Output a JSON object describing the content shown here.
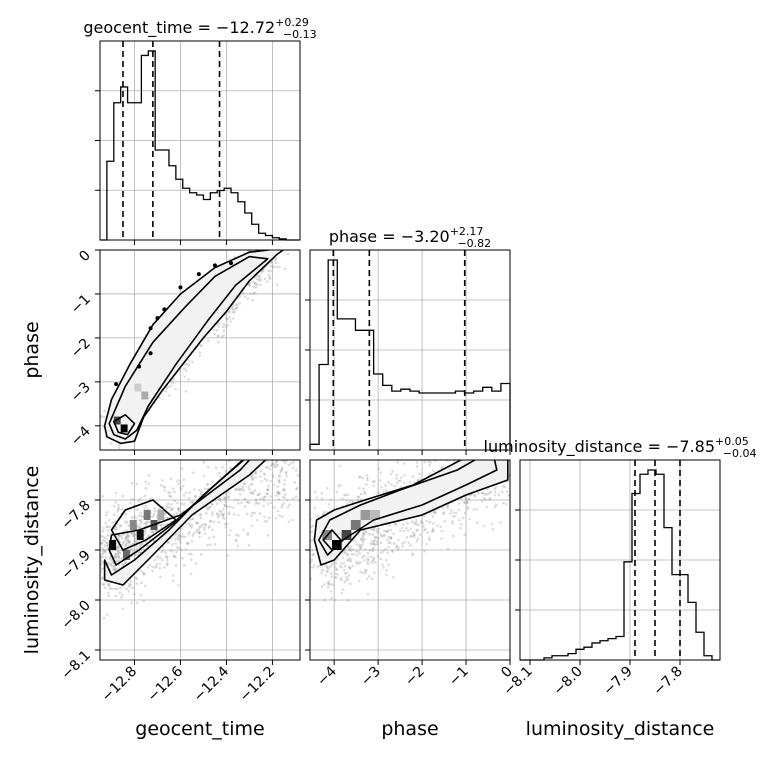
{
  "chart_data": {
    "type": "corner",
    "parameters": [
      "geocent_time",
      "phase",
      "luminosity_distance"
    ],
    "grid": true,
    "panels": {
      "geocent_time_hist": {
        "title": {
          "text": "geocent_time = −12.72",
          "sup": "+0.29",
          "sub": "−0.13"
        },
        "xlim": [
          -12.95,
          -12.08
        ],
        "quantiles": [
          -12.85,
          -12.72,
          -12.43
        ],
        "bin_edges": [
          -12.95,
          -12.92,
          -12.89,
          -12.86,
          -12.83,
          -12.8,
          -12.77,
          -12.74,
          -12.71,
          -12.68,
          -12.65,
          -12.62,
          -12.59,
          -12.56,
          -12.53,
          -12.5,
          -12.47,
          -12.44,
          -12.41,
          -12.38,
          -12.35,
          -12.32,
          -12.29,
          -12.26,
          -12.23,
          -12.2,
          -12.17,
          -12.14,
          -12.11,
          -12.08
        ],
        "counts": [
          0,
          0.35,
          0.61,
          0.68,
          0.61,
          0.61,
          0.82,
          0.84,
          0.4,
          0.4,
          0.33,
          0.27,
          0.23,
          0.21,
          0.2,
          0.18,
          0.21,
          0.22,
          0.23,
          0.21,
          0.17,
          0.12,
          0.07,
          0.03,
          0.02,
          0.01,
          0.005,
          0,
          0
        ]
      },
      "phase_hist": {
        "title": {
          "text": "phase = −3.20",
          "sup": "+2.17",
          "sub": "−0.82"
        },
        "xlim": [
          -4.55,
          0
        ],
        "quantiles": [
          -4.02,
          -3.2,
          -1.03
        ],
        "counts": [
          0.03,
          0.45,
          1.0,
          0.69,
          0.69,
          0.63,
          0.63,
          0.4,
          0.34,
          0.31,
          0.32,
          0.31,
          0.3,
          0.3,
          0.3,
          0.3,
          0.31,
          0.3,
          0.31,
          0.33,
          0.31,
          0.35
        ]
      },
      "luminosity_distance_hist": {
        "title": {
          "text": "luminosity_distance = −7.85",
          "sup": "+0.05",
          "sub": "−0.04"
        },
        "xlim": [
          -8.12,
          -7.72
        ],
        "quantiles": [
          -7.89,
          -7.85,
          -7.8
        ],
        "counts": [
          0,
          0,
          0,
          0.01,
          0.02,
          0.02,
          0.03,
          0.05,
          0.06,
          0.08,
          0.09,
          0.1,
          0.11,
          0.46,
          0.78,
          0.87,
          0.89,
          0.87,
          0.62,
          0.4,
          0.4,
          0.27,
          0.13,
          0.02,
          0
        ]
      }
    },
    "axes": {
      "geocent_time": {
        "label": "geocent_time",
        "range": [
          -12.95,
          -12.08
        ],
        "ticks": [
          -12.8,
          -12.6,
          -12.4,
          -12.2
        ],
        "tick_labels": [
          "−12.8",
          "−12.6",
          "−12.4",
          "−12.2"
        ]
      },
      "phase": {
        "label": "phase",
        "range": [
          -4.55,
          0
        ],
        "ticks": [
          -4,
          -3,
          -2,
          -1,
          0
        ],
        "tick_labels": [
          "−4",
          "−3",
          "−2",
          "−1",
          "0"
        ]
      },
      "luminosity_distance": {
        "label": "luminosity_distance",
        "range": [
          -8.12,
          -7.72
        ],
        "ticks": [
          -8.1,
          -8.0,
          -7.9,
          -7.8
        ],
        "tick_labels": [
          "−8.1",
          "−8.0",
          "−7.9",
          "−7.8"
        ]
      }
    },
    "contour_panels": [
      {
        "x": "geocent_time",
        "y": "phase"
      },
      {
        "x": "geocent_time",
        "y": "luminosity_distance"
      },
      {
        "x": "phase",
        "y": "luminosity_distance"
      }
    ]
  }
}
